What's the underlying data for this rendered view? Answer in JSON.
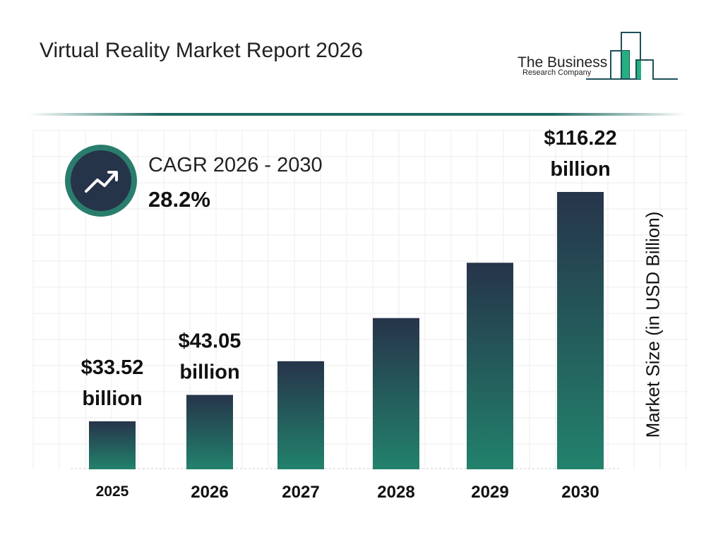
{
  "title": "Virtual Reality Market Report 2026",
  "logo": {
    "line1": "The Business",
    "line2": "Research Company"
  },
  "cagr": {
    "label": "CAGR 2026 - 2030",
    "value": "28.2%",
    "icon": "trend-up-icon"
  },
  "chart_data": {
    "type": "bar",
    "categories": [
      "2025",
      "2026",
      "2027",
      "2028",
      "2029",
      "2030"
    ],
    "values": [
      33.52,
      43.05,
      55.19,
      70.75,
      90.7,
      116.22
    ],
    "data_labels": [
      [
        "$33.52",
        "billion"
      ],
      [
        "$43.05",
        "billion"
      ],
      null,
      null,
      null,
      [
        "$116.22",
        "billion"
      ]
    ],
    "xlabel": "",
    "ylabel": "Market Size (in USD Billion)",
    "grid": true,
    "colors": {
      "bar_top": "#26344a",
      "bar_bottom": "#22826c"
    }
  }
}
